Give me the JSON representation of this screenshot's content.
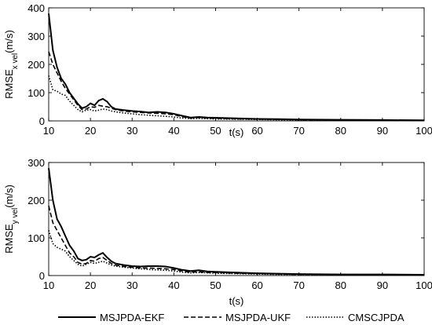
{
  "chart_data": [
    {
      "type": "line",
      "xlabel": "t(s)",
      "ylabel": {
        "base": "RMSE",
        "sub": "x vel",
        "unit": "(m/s)"
      },
      "xlim": [
        10,
        100
      ],
      "ylim": [
        0,
        400
      ],
      "xticks": [
        10,
        20,
        30,
        40,
        50,
        60,
        70,
        80,
        90,
        100
      ],
      "yticks": [
        0,
        100,
        200,
        300,
        400
      ],
      "grid": false,
      "series": [
        {
          "name": "MSJPDA-EKF",
          "x": [
            10,
            11,
            12,
            13,
            14,
            15,
            16,
            17,
            18,
            19,
            20,
            21,
            22,
            23,
            24,
            25,
            26,
            28,
            30,
            32,
            34,
            36,
            38,
            40,
            42,
            44,
            46,
            48,
            50,
            55,
            60,
            65,
            70,
            80,
            90,
            100
          ],
          "y": [
            380,
            250,
            190,
            150,
            130,
            100,
            80,
            60,
            45,
            50,
            62,
            55,
            72,
            78,
            68,
            50,
            42,
            38,
            35,
            33,
            30,
            32,
            30,
            25,
            18,
            12,
            14,
            12,
            11,
            9,
            7,
            6,
            5,
            4,
            3,
            2
          ]
        },
        {
          "name": "MSJPDA-UKF",
          "x": [
            10,
            11,
            12,
            13,
            14,
            15,
            16,
            17,
            18,
            19,
            20,
            21,
            22,
            23,
            24,
            25,
            26,
            28,
            30,
            32,
            34,
            36,
            38,
            40,
            42,
            44,
            46,
            48,
            50,
            55,
            60,
            65,
            70,
            80,
            90,
            100
          ],
          "y": [
            245,
            200,
            170,
            140,
            115,
            95,
            75,
            55,
            40,
            42,
            50,
            48,
            55,
            52,
            50,
            45,
            40,
            35,
            32,
            30,
            28,
            27,
            25,
            22,
            15,
            10,
            12,
            10,
            9,
            7,
            6,
            5,
            4,
            3,
            2,
            2
          ]
        },
        {
          "name": "CMSCJPDA",
          "x": [
            10,
            11,
            12,
            13,
            14,
            15,
            16,
            17,
            18,
            19,
            20,
            21,
            22,
            23,
            24,
            25,
            26,
            28,
            30,
            32,
            34,
            36,
            38,
            40,
            42,
            44,
            46,
            48,
            50,
            55,
            60,
            65,
            70,
            80,
            90,
            100
          ],
          "y": [
            160,
            110,
            105,
            95,
            90,
            70,
            55,
            40,
            32,
            38,
            40,
            35,
            38,
            42,
            40,
            35,
            32,
            28,
            25,
            22,
            20,
            18,
            16,
            14,
            10,
            8,
            9,
            8,
            7,
            6,
            5,
            4,
            3,
            3,
            2,
            2
          ]
        }
      ]
    },
    {
      "type": "line",
      "xlabel": "t(s)",
      "ylabel": {
        "base": "RMSE",
        "sub": "y vel",
        "unit": "(m/s)"
      },
      "xlim": [
        10,
        100
      ],
      "ylim": [
        0,
        300
      ],
      "xticks": [
        10,
        20,
        30,
        40,
        50,
        60,
        70,
        80,
        90,
        100
      ],
      "yticks": [
        0,
        100,
        200,
        300
      ],
      "grid": false,
      "series": [
        {
          "name": "MSJPDA-EKF",
          "x": [
            10,
            11,
            12,
            13,
            14,
            15,
            16,
            17,
            18,
            19,
            20,
            21,
            22,
            23,
            24,
            25,
            26,
            28,
            30,
            32,
            34,
            36,
            38,
            40,
            42,
            44,
            46,
            48,
            50,
            55,
            60,
            65,
            70,
            80,
            90,
            100
          ],
          "y": [
            285,
            200,
            150,
            130,
            105,
            80,
            65,
            45,
            40,
            42,
            50,
            48,
            55,
            60,
            48,
            38,
            32,
            28,
            25,
            24,
            25,
            25,
            24,
            20,
            15,
            12,
            14,
            11,
            10,
            8,
            6,
            5,
            4,
            3,
            3,
            2
          ]
        },
        {
          "name": "MSJPDA-UKF",
          "x": [
            10,
            11,
            12,
            13,
            14,
            15,
            16,
            17,
            18,
            19,
            20,
            21,
            22,
            23,
            24,
            25,
            26,
            28,
            30,
            32,
            34,
            36,
            38,
            40,
            42,
            44,
            46,
            48,
            50,
            55,
            60,
            65,
            70,
            80,
            90,
            100
          ],
          "y": [
            185,
            140,
            120,
            100,
            80,
            60,
            50,
            35,
            30,
            32,
            40,
            38,
            45,
            48,
            40,
            32,
            28,
            24,
            22,
            20,
            20,
            19,
            18,
            16,
            12,
            9,
            10,
            8,
            8,
            6,
            5,
            4,
            3,
            3,
            2,
            2
          ]
        },
        {
          "name": "CMSCJPDA",
          "x": [
            10,
            11,
            12,
            13,
            14,
            15,
            16,
            17,
            18,
            19,
            20,
            21,
            22,
            23,
            24,
            25,
            26,
            28,
            30,
            32,
            34,
            36,
            38,
            40,
            42,
            44,
            46,
            48,
            50,
            55,
            60,
            65,
            70,
            80,
            90,
            100
          ],
          "y": [
            120,
            85,
            75,
            70,
            65,
            50,
            40,
            30,
            25,
            30,
            35,
            32,
            35,
            38,
            33,
            28,
            25,
            22,
            20,
            18,
            16,
            15,
            14,
            12,
            9,
            7,
            8,
            7,
            6,
            5,
            4,
            3,
            3,
            2,
            2,
            2
          ]
        }
      ]
    }
  ],
  "legend": {
    "placement": "bottom",
    "entries": [
      {
        "label": "MSJPDA-EKF",
        "style": "solid"
      },
      {
        "label": "MSJPDA-UKF",
        "style": "dashed"
      },
      {
        "label": "CMSCJPDA",
        "style": "dotted"
      }
    ]
  }
}
